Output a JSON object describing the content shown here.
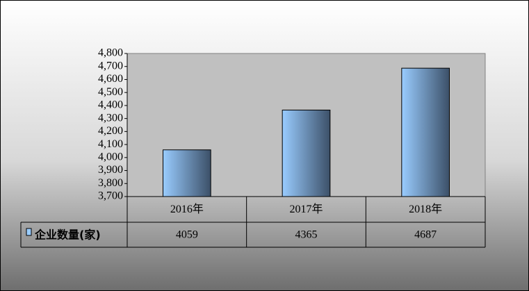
{
  "chart_data": {
    "type": "bar",
    "categories": [
      "2016年",
      "2017年",
      "2018年"
    ],
    "series": [
      {
        "name": "企业数量(家)",
        "color": "#99ccff",
        "values": [
          4059,
          4365,
          4687
        ]
      }
    ],
    "ylim": [
      3700,
      4800
    ],
    "yticks": [
      {
        "value": 3700,
        "label": "3,700"
      },
      {
        "value": 3800,
        "label": "3,800"
      },
      {
        "value": 3900,
        "label": "3,900"
      },
      {
        "value": 4000,
        "label": "4,000"
      },
      {
        "value": 4100,
        "label": "4,100"
      },
      {
        "value": 4200,
        "label": "4,200"
      },
      {
        "value": 4300,
        "label": "4,300"
      },
      {
        "value": 4400,
        "label": "4,400"
      },
      {
        "value": 4500,
        "label": "4,500"
      },
      {
        "value": 4600,
        "label": "4,600"
      },
      {
        "value": 4700,
        "label": "4,700"
      },
      {
        "value": 4800,
        "label": "4,800"
      }
    ],
    "data_table": true
  }
}
